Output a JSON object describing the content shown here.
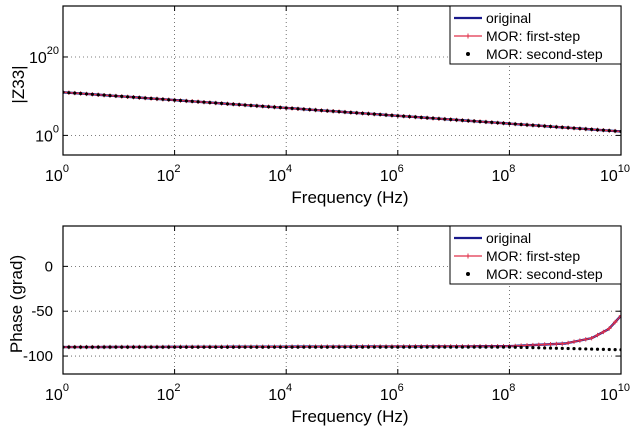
{
  "chart_data": [
    {
      "type": "line",
      "xscale": "log",
      "yscale": "log",
      "xlim": [
        1,
        10000000000
      ],
      "ylim": [
        1e-05,
        1e+33
      ],
      "xlabel": "Frequency (Hz)",
      "ylabel": "|Z33|",
      "x_ticks": [
        {
          "base": "10",
          "exp": "0"
        },
        {
          "base": "10",
          "exp": "2"
        },
        {
          "base": "10",
          "exp": "4"
        },
        {
          "base": "10",
          "exp": "6"
        },
        {
          "base": "10",
          "exp": "8"
        },
        {
          "base": "10",
          "exp": "10"
        }
      ],
      "y_ticks": [
        {
          "base": "10",
          "exp": "0"
        },
        {
          "base": "10",
          "exp": "20"
        }
      ],
      "grid": true,
      "legend_position": "top-right",
      "legend": [
        "original",
        "MOR: first-step",
        "MOR: second-step"
      ],
      "series": [
        {
          "name": "original",
          "style": "line",
          "color": "#1a1a8c",
          "x": [
            1,
            100,
            10000,
            1000000,
            100000000,
            10000000000
          ],
          "y": [
            100000000000.0,
            1000000000.0,
            10000000.0,
            100000.0,
            1000.0,
            10.0
          ]
        },
        {
          "name": "MOR: first-step",
          "style": "line+plus",
          "color": "#e0304a",
          "x": [
            1,
            100,
            10000,
            1000000,
            100000000,
            10000000000
          ],
          "y": [
            100000000000.0,
            1000000000.0,
            10000000.0,
            100000.0,
            1000.0,
            10.0
          ]
        },
        {
          "name": "MOR: second-step",
          "style": "dots",
          "color": "#000000",
          "x": [
            1,
            100,
            10000,
            1000000,
            100000000,
            10000000000
          ],
          "y": [
            100000000000.0,
            1000000000.0,
            10000000.0,
            100000.0,
            1000.0,
            10.0
          ]
        }
      ]
    },
    {
      "type": "line",
      "xscale": "log",
      "xlim": [
        1,
        10000000000
      ],
      "ylim": [
        -120,
        45
      ],
      "xlabel": "Frequency (Hz)",
      "ylabel": "Phase (grad)",
      "x_ticks": [
        {
          "base": "10",
          "exp": "0"
        },
        {
          "base": "10",
          "exp": "2"
        },
        {
          "base": "10",
          "exp": "4"
        },
        {
          "base": "10",
          "exp": "6"
        },
        {
          "base": "10",
          "exp": "8"
        },
        {
          "base": "10",
          "exp": "10"
        }
      ],
      "y_ticks": [
        "0",
        "-50",
        "-100"
      ],
      "y_tick_values": [
        0,
        -50,
        -100
      ],
      "grid": true,
      "legend_position": "top-right",
      "legend": [
        "original",
        "MOR: first-step",
        "MOR: second-step"
      ],
      "series": [
        {
          "name": "original",
          "style": "line",
          "color": "#1a1a8c",
          "x": [
            1,
            100000000,
            1000000000,
            3000000000,
            6000000000,
            10000000000
          ],
          "y": [
            -90,
            -89,
            -86,
            -80,
            -70,
            -55
          ]
        },
        {
          "name": "MOR: first-step",
          "style": "line+plus",
          "color": "#e0304a",
          "x": [
            1,
            100000000,
            1000000000,
            3000000000,
            6000000000,
            10000000000
          ],
          "y": [
            -90,
            -89,
            -86,
            -80,
            -70,
            -55
          ]
        },
        {
          "name": "MOR: second-step",
          "style": "dots",
          "color": "#000000",
          "x": [
            1,
            100000000,
            10000000000
          ],
          "y": [
            -90,
            -90,
            -93
          ]
        }
      ]
    }
  ]
}
